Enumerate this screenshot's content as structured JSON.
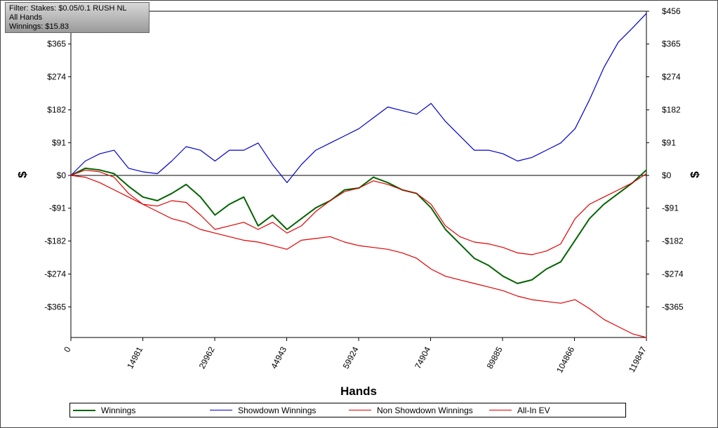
{
  "filter_box": {
    "line1": "Filter: Stakes: $0.05/0.1 RUSH NL",
    "line2": "All Hands",
    "line3": "Winnings: $15.83"
  },
  "chart_data": {
    "type": "line",
    "xlabel": "Hands",
    "ylabel": "$",
    "xlim": [
      0,
      119847
    ],
    "ylim": [
      -450,
      456
    ],
    "x_ticks": [
      0,
      14981,
      29962,
      44943,
      59924,
      74904,
      89885,
      104866,
      119847
    ],
    "y_ticks": [
      456,
      365,
      274,
      182,
      91,
      0,
      -91,
      -182,
      -274,
      -365
    ],
    "y_tick_labels": [
      "$456",
      "$365",
      "$274",
      "$182",
      "$91",
      "$0",
      "-$91",
      "-$182",
      "-$274",
      "-$365"
    ],
    "grid": true,
    "legend_position": "bottom",
    "series": [
      {
        "name": "Winnings",
        "color": "#006400",
        "x": [
          0,
          3000,
          6000,
          9000,
          12000,
          15000,
          18000,
          21000,
          24000,
          27000,
          30000,
          33000,
          36000,
          39000,
          42000,
          45000,
          48000,
          51000,
          54000,
          57000,
          60000,
          63000,
          66000,
          69000,
          72000,
          75000,
          78000,
          81000,
          84000,
          87000,
          90000,
          93000,
          96000,
          99000,
          102000,
          105000,
          108000,
          111000,
          114000,
          117000,
          119847
        ],
        "y": [
          0,
          20,
          15,
          5,
          -30,
          -60,
          -70,
          -50,
          -25,
          -60,
          -110,
          -80,
          -60,
          -140,
          -110,
          -150,
          -120,
          -90,
          -70,
          -40,
          -35,
          -5,
          -20,
          -40,
          -50,
          -90,
          -150,
          -190,
          -230,
          -250,
          -280,
          -300,
          -290,
          -260,
          -240,
          -180,
          -120,
          -80,
          -50,
          -20,
          15
        ]
      },
      {
        "name": "Showdown Winnings",
        "color": "#0000cc",
        "x": [
          0,
          3000,
          6000,
          9000,
          12000,
          15000,
          18000,
          21000,
          24000,
          27000,
          30000,
          33000,
          36000,
          39000,
          42000,
          45000,
          48000,
          51000,
          54000,
          57000,
          60000,
          63000,
          66000,
          69000,
          72000,
          75000,
          78000,
          81000,
          84000,
          87000,
          90000,
          93000,
          96000,
          99000,
          102000,
          105000,
          108000,
          111000,
          114000,
          117000,
          119847
        ],
        "y": [
          0,
          40,
          60,
          70,
          20,
          10,
          5,
          40,
          80,
          70,
          40,
          70,
          70,
          90,
          30,
          -20,
          30,
          70,
          90,
          110,
          130,
          160,
          190,
          180,
          170,
          200,
          150,
          110,
          70,
          70,
          60,
          40,
          50,
          70,
          90,
          130,
          210,
          300,
          370,
          410,
          450
        ]
      },
      {
        "name": "Non Showdown Winnings",
        "color": "#e00000",
        "x": [
          0,
          3000,
          6000,
          9000,
          12000,
          15000,
          18000,
          21000,
          24000,
          27000,
          30000,
          33000,
          36000,
          39000,
          42000,
          45000,
          48000,
          51000,
          54000,
          57000,
          60000,
          63000,
          66000,
          69000,
          72000,
          75000,
          78000,
          81000,
          84000,
          87000,
          90000,
          93000,
          96000,
          99000,
          102000,
          105000,
          108000,
          111000,
          114000,
          117000,
          119847
        ],
        "y": [
          0,
          -5,
          -20,
          -40,
          -60,
          -80,
          -100,
          -120,
          -130,
          -150,
          -160,
          -170,
          -180,
          -185,
          -195,
          -205,
          -180,
          -175,
          -170,
          -185,
          -195,
          -200,
          -205,
          -215,
          -230,
          -260,
          -280,
          -290,
          -300,
          -310,
          -320,
          -335,
          -345,
          -350,
          -355,
          -345,
          -370,
          -400,
          -420,
          -440,
          -450
        ]
      },
      {
        "name": "All-In EV",
        "color": "#e00000",
        "x": [
          0,
          3000,
          6000,
          9000,
          12000,
          15000,
          18000,
          21000,
          24000,
          27000,
          30000,
          33000,
          36000,
          39000,
          42000,
          45000,
          48000,
          51000,
          54000,
          57000,
          60000,
          63000,
          66000,
          69000,
          72000,
          75000,
          78000,
          81000,
          84000,
          87000,
          90000,
          93000,
          96000,
          99000,
          102000,
          105000,
          108000,
          111000,
          114000,
          117000,
          119847
        ],
        "y": [
          0,
          15,
          10,
          -5,
          -50,
          -80,
          -85,
          -70,
          -75,
          -110,
          -150,
          -140,
          -130,
          -150,
          -130,
          -160,
          -140,
          -100,
          -70,
          -45,
          -35,
          -15,
          -25,
          -40,
          -50,
          -80,
          -140,
          -170,
          -185,
          -190,
          -200,
          -215,
          -220,
          -210,
          -190,
          -120,
          -80,
          -60,
          -40,
          -20,
          5
        ]
      }
    ]
  }
}
